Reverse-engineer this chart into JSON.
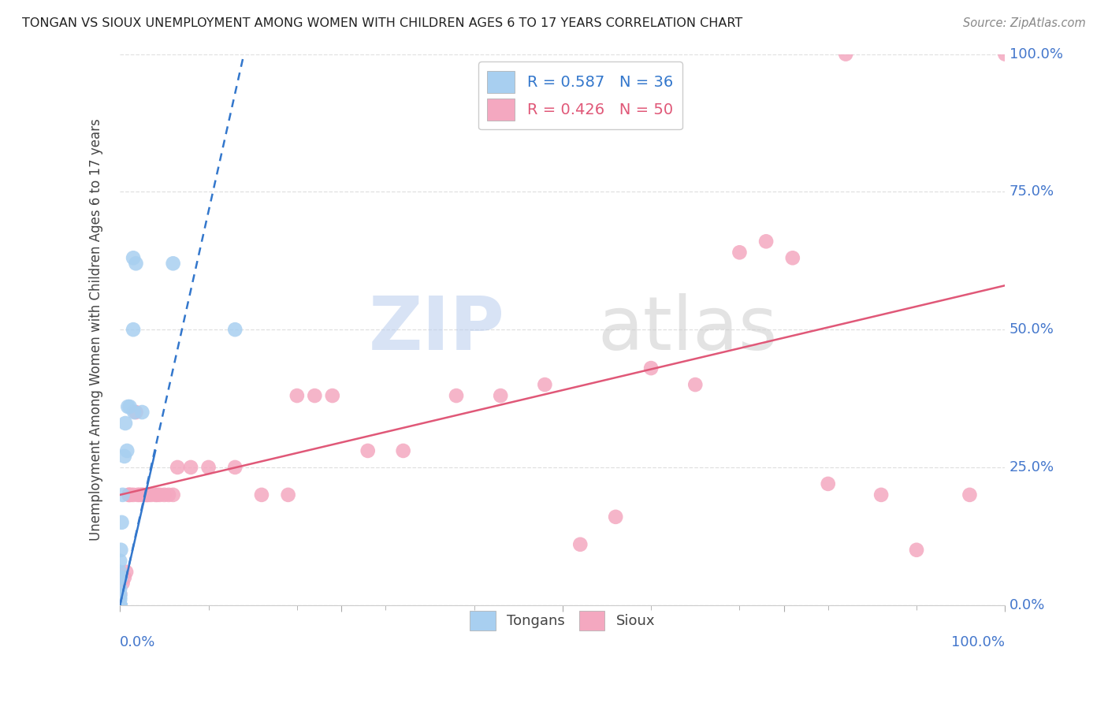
{
  "title": "TONGAN VS SIOUX UNEMPLOYMENT AMONG WOMEN WITH CHILDREN AGES 6 TO 17 YEARS CORRELATION CHART",
  "source": "Source: ZipAtlas.com",
  "ylabel": "Unemployment Among Women with Children Ages 6 to 17 years",
  "watermark_zip": "ZIP",
  "watermark_atlas": "atlas",
  "tongans_R": 0.587,
  "tongans_N": 36,
  "sioux_R": 0.426,
  "sioux_N": 50,
  "tongans_color": "#A8CFF0",
  "sioux_color": "#F4A8C0",
  "tongans_line_color": "#3377CC",
  "sioux_line_color": "#E05878",
  "background_color": "#FFFFFF",
  "grid_color": "#DDDDDD",
  "tick_label_color": "#4477CC",
  "tongans_x": [
    0.0,
    0.0,
    0.0,
    0.0,
    0.0,
    0.0,
    0.0,
    0.0,
    0.0,
    0.0,
    0.0,
    0.0,
    0.0,
    0.0,
    0.0,
    0.0,
    0.0,
    0.0,
    0.0,
    0.0,
    0.001,
    0.001,
    0.002,
    0.003,
    0.005,
    0.006,
    0.008,
    0.009,
    0.011,
    0.015,
    0.016,
    0.025,
    0.015,
    0.018,
    0.06,
    0.13
  ],
  "tongans_y": [
    0.0,
    0.0,
    0.0,
    0.0,
    0.0,
    0.0,
    0.0,
    0.0,
    0.0,
    0.0,
    0.0,
    0.0,
    0.0,
    0.01,
    0.015,
    0.02,
    0.03,
    0.05,
    0.06,
    0.08,
    0.05,
    0.1,
    0.15,
    0.2,
    0.27,
    0.33,
    0.28,
    0.36,
    0.36,
    0.5,
    0.35,
    0.35,
    0.63,
    0.62,
    0.62,
    0.5
  ],
  "sioux_x": [
    0.0,
    0.003,
    0.005,
    0.007,
    0.01,
    0.01,
    0.012,
    0.015,
    0.018,
    0.02,
    0.022,
    0.025,
    0.025,
    0.03,
    0.03,
    0.032,
    0.035,
    0.04,
    0.042,
    0.045,
    0.05,
    0.055,
    0.06,
    0.065,
    0.08,
    0.1,
    0.13,
    0.16,
    0.19,
    0.2,
    0.22,
    0.24,
    0.28,
    0.32,
    0.38,
    0.43,
    0.48,
    0.52,
    0.56,
    0.6,
    0.65,
    0.7,
    0.73,
    0.76,
    0.8,
    0.82,
    0.86,
    0.9,
    0.96,
    1.0
  ],
  "sioux_y": [
    0.02,
    0.04,
    0.05,
    0.06,
    0.2,
    0.2,
    0.2,
    0.2,
    0.35,
    0.2,
    0.2,
    0.2,
    0.2,
    0.2,
    0.2,
    0.2,
    0.2,
    0.2,
    0.2,
    0.2,
    0.2,
    0.2,
    0.2,
    0.25,
    0.25,
    0.25,
    0.25,
    0.2,
    0.2,
    0.38,
    0.38,
    0.38,
    0.28,
    0.28,
    0.38,
    0.38,
    0.4,
    0.11,
    0.16,
    0.43,
    0.4,
    0.64,
    0.66,
    0.63,
    0.22,
    1.0,
    0.2,
    0.1,
    0.2,
    1.0
  ],
  "tongans_line_x": [
    0.0,
    0.14
  ],
  "tongans_line_y": [
    0.0,
    1.0
  ],
  "sioux_line_x": [
    0.0,
    1.0
  ],
  "sioux_line_y": [
    0.2,
    0.58
  ],
  "xlim": [
    0.0,
    1.0
  ],
  "ylim": [
    0.0,
    1.0
  ],
  "xticks_major": [
    0.0,
    0.25,
    0.5,
    0.75,
    1.0
  ],
  "xticks_minor": [
    0.1,
    0.2,
    0.3,
    0.4,
    0.6,
    0.7,
    0.8,
    0.9
  ],
  "yticks": [
    0.0,
    0.25,
    0.5,
    0.75,
    1.0
  ],
  "xticklabels_left": "0.0%",
  "xticklabels_right": "100.0%",
  "yticklabels": [
    "0.0%",
    "25.0%",
    "50.0%",
    "75.0%",
    "100.0%"
  ]
}
